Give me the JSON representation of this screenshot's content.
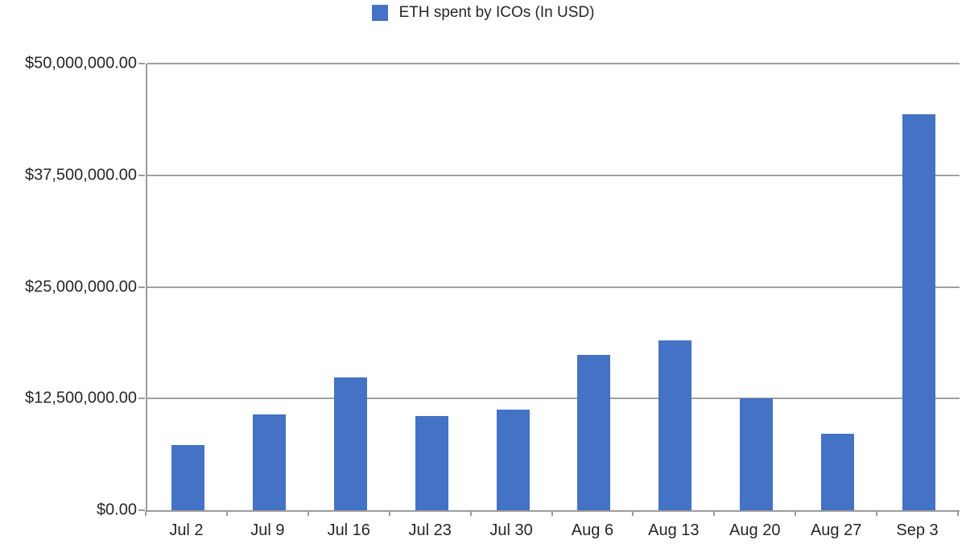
{
  "legend": {
    "label": "ETH spent by ICOs (In USD)",
    "swatch_color": "#4472c4"
  },
  "chart_data": {
    "type": "bar",
    "title": "ETH spent by ICOs (In USD)",
    "xlabel": "",
    "ylabel": "",
    "categories": [
      "Jul 2",
      "Jul 9",
      "Jul 16",
      "Jul 23",
      "Jul 30",
      "Aug 6",
      "Aug 13",
      "Aug 20",
      "Aug 27",
      "Sep 3"
    ],
    "values": [
      7300000,
      10700000,
      14900000,
      10500000,
      11300000,
      17400000,
      19000000,
      12500000,
      8600000,
      44300000
    ],
    "series_name": "ETH spent by ICOs (In USD)",
    "ylim": [
      0,
      50000000
    ],
    "ytick_values": [
      0,
      12500000,
      25000000,
      37500000,
      50000000
    ],
    "ytick_labels": [
      "$0.00",
      "$12,500,000.00",
      "$25,000,000.00",
      "$37,500,000.00",
      "$50,000,000.00"
    ],
    "grid": true,
    "legend_position": "top-center",
    "bar_color": "#4472c4",
    "grid_color": "#a0a0a0",
    "axis_color": "#9b9b9b",
    "text_color": "#262626"
  }
}
